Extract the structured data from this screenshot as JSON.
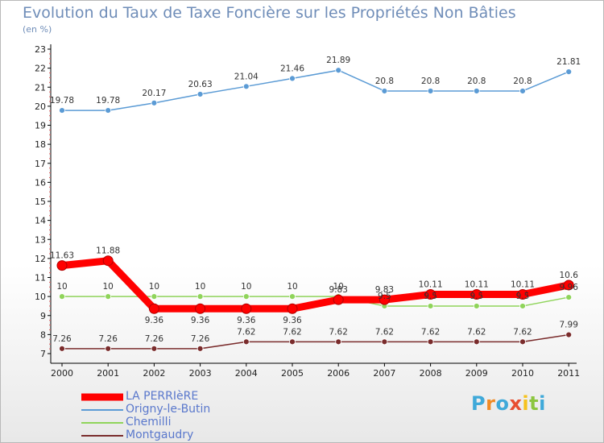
{
  "title": "Evolution du Taux de Taxe Foncière sur les Propriétés Non Bâties",
  "subtitle": "(en %)",
  "logo": {
    "text": "Proxiti",
    "colors": [
      "#3fa9d9",
      "#f08a24",
      "#3fa9d9",
      "#e84e31",
      "#f6c21c",
      "#8cc63f",
      "#3fa9d9"
    ]
  },
  "chart_data": {
    "type": "line",
    "title": "Evolution du Taux de Taxe Foncière sur les Propriétés Non Bâties",
    "ylabel": "(en %)",
    "xlabel": "",
    "ylim": [
      7,
      23
    ],
    "yticks": [
      7,
      8,
      9,
      10,
      11,
      12,
      13,
      14,
      15,
      16,
      17,
      18,
      19,
      20,
      21,
      22,
      23
    ],
    "grid": false,
    "legend_position": "bottom-left",
    "categories": [
      "2000",
      "2001",
      "2002",
      "2003",
      "2004",
      "2005",
      "2006",
      "2007",
      "2008",
      "2009",
      "2010",
      "2011"
    ],
    "series": [
      {
        "name": "LA PERRIèRE",
        "color": "#ff0000",
        "values": [
          11.63,
          11.88,
          9.36,
          9.36,
          9.36,
          9.36,
          9.83,
          9.83,
          10.11,
          10.11,
          10.11,
          10.6
        ],
        "labels": [
          "11.63",
          "11.88",
          "9.36",
          "9.36",
          "9.36",
          "9.36",
          "9.83",
          "9.83",
          "10.11",
          "10.11",
          "10.11",
          "10.6"
        ],
        "label_pos": [
          "above",
          "above",
          "below",
          "below",
          "below",
          "below",
          "above",
          "above",
          "above",
          "above",
          "above",
          "above"
        ]
      },
      {
        "name": "Origny-le-Butin",
        "color": "#5b9bd5",
        "values": [
          19.78,
          19.78,
          20.17,
          20.63,
          21.04,
          21.46,
          21.89,
          20.8,
          20.8,
          20.8,
          20.8,
          21.81
        ],
        "labels": [
          "19.78",
          "19.78",
          "20.17",
          "20.63",
          "21.04",
          "21.46",
          "21.89",
          "20.8",
          "20.8",
          "20.8",
          "20.8",
          "21.81"
        ],
        "label_pos": [
          "above",
          "above",
          "above",
          "above",
          "above",
          "above",
          "above",
          "above",
          "above",
          "above",
          "above",
          "above"
        ]
      },
      {
        "name": "Chemilli",
        "color": "#8fd45a",
        "values": [
          10,
          10,
          10,
          10,
          10,
          10,
          10,
          9.5,
          9.5,
          9.5,
          9.5,
          9.96
        ],
        "labels": [
          "10",
          "10",
          "10",
          "10",
          "10",
          "10",
          "10",
          "9.5",
          "9.5",
          "9.5",
          "9.5",
          "9.96"
        ],
        "label_pos": [
          "above",
          "above",
          "above",
          "above",
          "above",
          "above",
          "above",
          "above",
          "above",
          "above",
          "above",
          "above"
        ]
      },
      {
        "name": "Montgaudry",
        "color": "#7a2c2c",
        "values": [
          7.26,
          7.26,
          7.26,
          7.26,
          7.62,
          7.62,
          7.62,
          7.62,
          7.62,
          7.62,
          7.62,
          7.99
        ],
        "labels": [
          "7.26",
          "7.26",
          "7.26",
          "7.26",
          "7.62",
          "7.62",
          "7.62",
          "7.62",
          "7.62",
          "7.62",
          "7.62",
          "7.99"
        ],
        "label_pos": [
          "above",
          "above",
          "above",
          "above",
          "above",
          "above",
          "above",
          "above",
          "above",
          "above",
          "above",
          "above"
        ]
      }
    ]
  }
}
